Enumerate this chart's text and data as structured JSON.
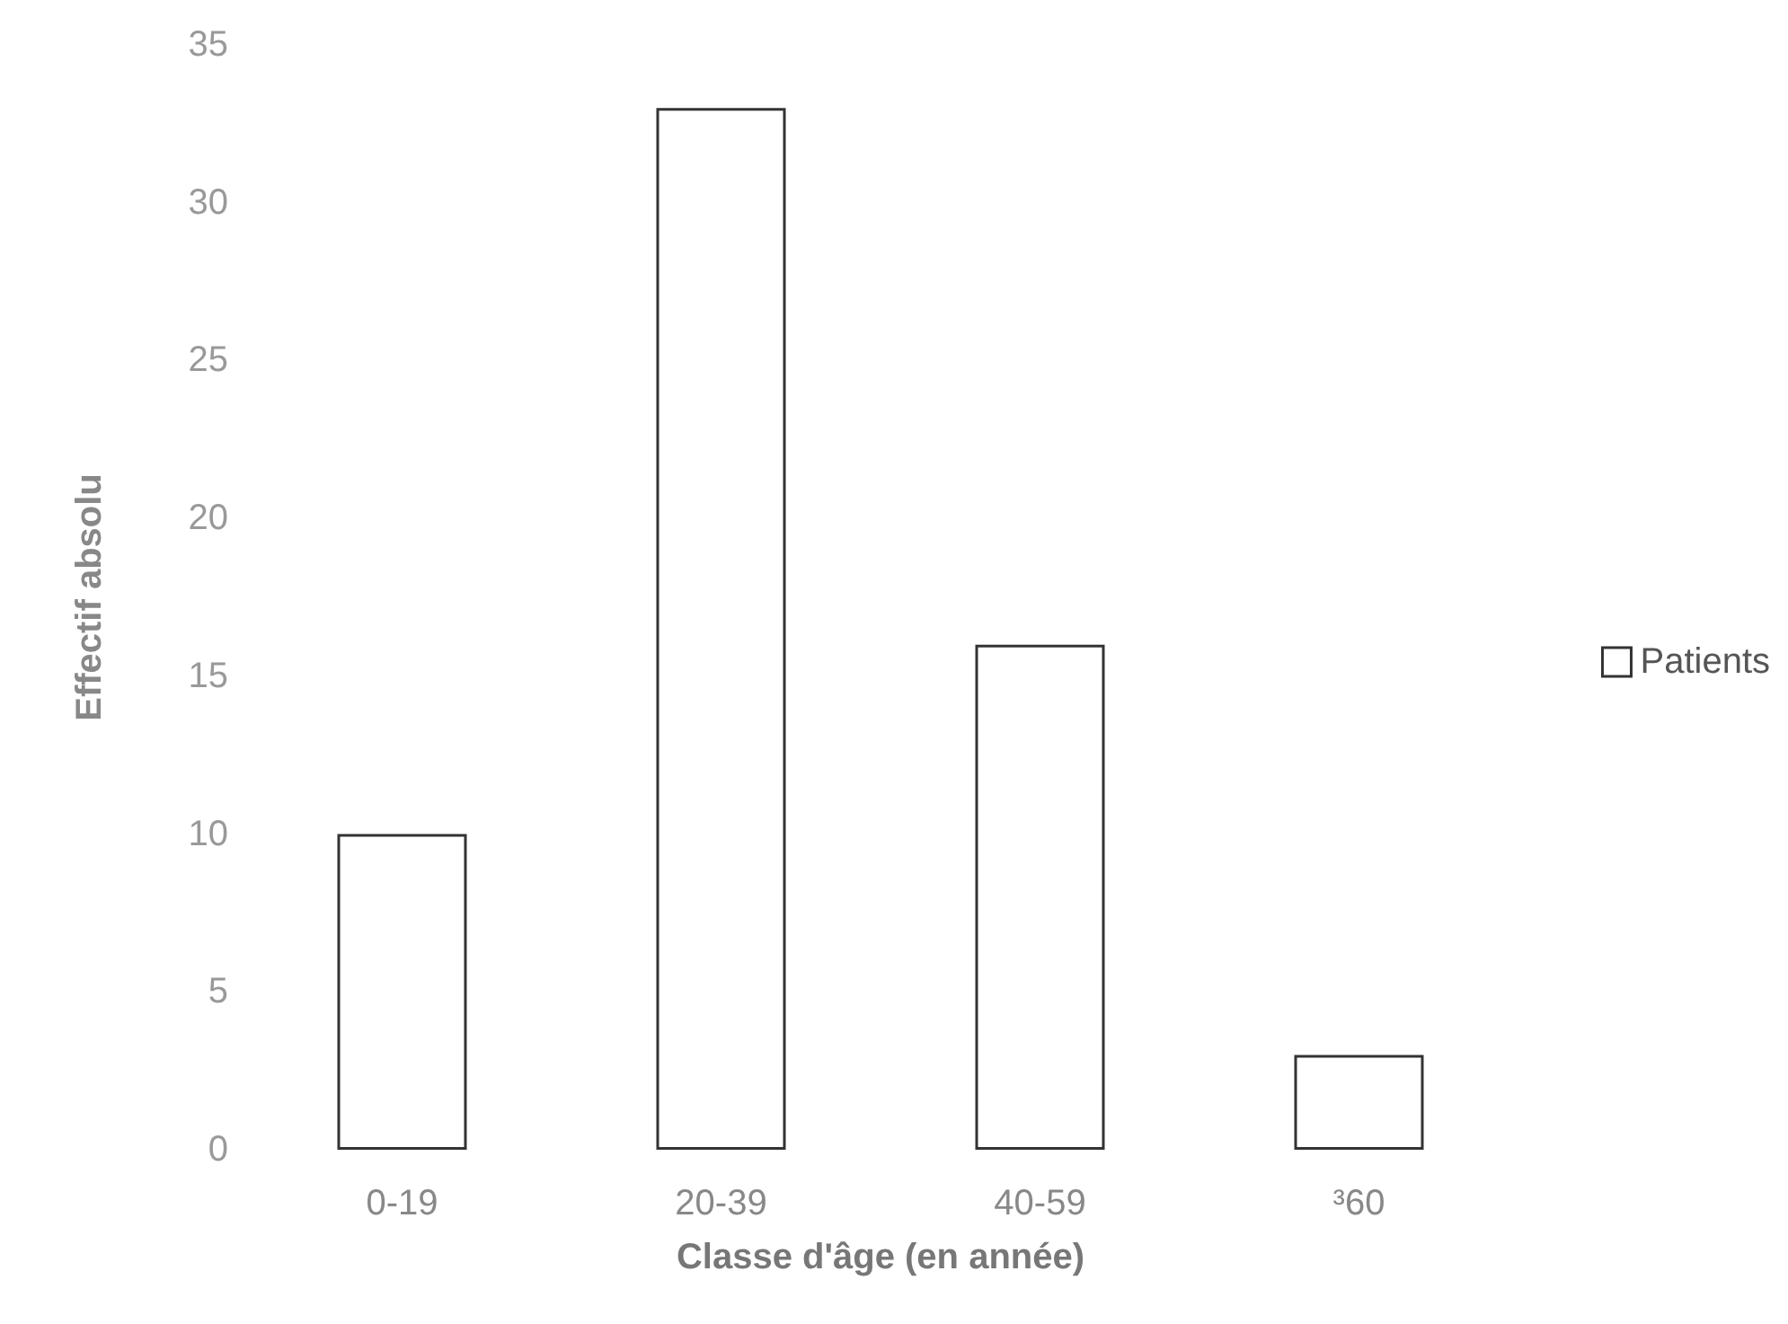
{
  "chart_data": {
    "type": "bar",
    "xlabel": "Classe d'âge (en année)",
    "ylabel": "Effectif absolu",
    "categories": [
      "0-19",
      "20-39",
      "40-59",
      "³60"
    ],
    "series": [
      {
        "name": "Patients",
        "color": "#ffffff",
        "values": [
          10,
          33,
          16,
          3
        ]
      }
    ],
    "ylim": [
      0,
      35
    ],
    "yticks": [
      0,
      5,
      10,
      15,
      20,
      25,
      30,
      35
    ],
    "grid": false,
    "legend": "right"
  }
}
